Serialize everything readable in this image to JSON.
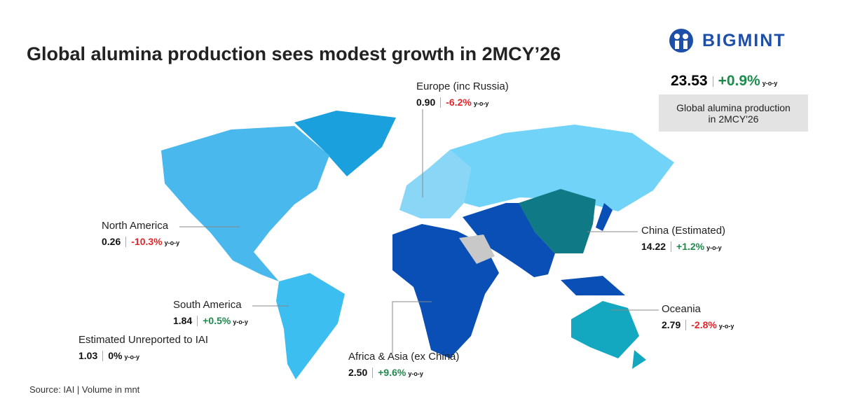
{
  "header": {
    "title": "Global alumina production sees modest growth in 2MCY’26"
  },
  "logo": {
    "text": "BIGMINT"
  },
  "unit": "y-o-y",
  "global": {
    "value": "23.53",
    "change": "+0.9%",
    "caption": [
      "Global alumina production",
      "in 2MCY'26"
    ]
  },
  "regions": [
    {
      "name": "Europe (inc Russia)",
      "value": "0.90",
      "change": "-6.2%"
    },
    {
      "name": "North America",
      "value": "0.26",
      "change": "-10.3%"
    },
    {
      "name": "China (Estimated)",
      "value": "14.22",
      "change": "+1.2%"
    },
    {
      "name": "South America",
      "value": "1.84",
      "change": "+0.5%"
    },
    {
      "name": "Estimated Unreported to IAI",
      "value": "1.03",
      "change": "0%"
    },
    {
      "name": "Africa & Asia (ex China)",
      "value": "2.50",
      "change": "+9.6%"
    },
    {
      "name": "Oceania",
      "value": "2.79",
      "change": "-2.8%"
    }
  ],
  "footer": {
    "source": "Source: IAI | Volume in mnt"
  }
}
